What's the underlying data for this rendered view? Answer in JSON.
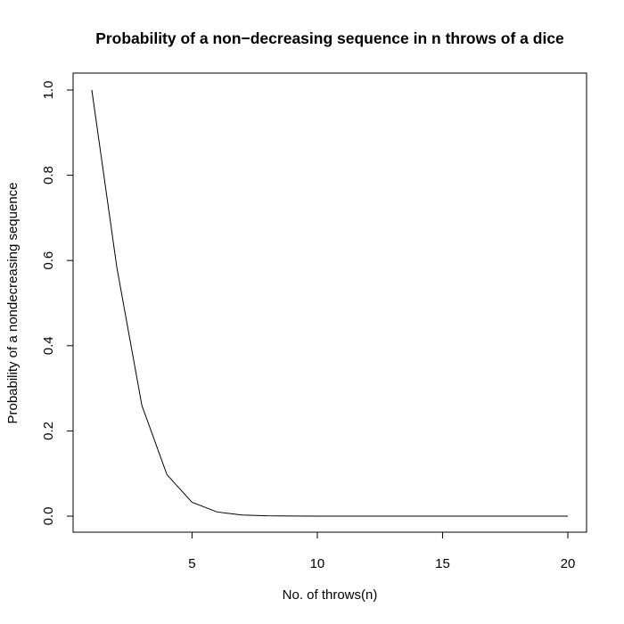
{
  "chart_data": {
    "type": "line",
    "title": "Probability of a non−decreasing sequence in n throws of a dice",
    "xlabel": "No. of throws(n)",
    "ylabel": "Probability of a nondecreasing sequence",
    "xlim": [
      1,
      20
    ],
    "ylim": [
      0,
      1
    ],
    "x_ticks": [
      5,
      10,
      15,
      20
    ],
    "x_tick_labels": [
      "5",
      "10",
      "15",
      "20"
    ],
    "y_ticks": [
      0,
      0.2,
      0.4,
      0.6,
      0.8,
      1
    ],
    "y_tick_labels": [
      "0.0",
      "0.2",
      "0.4",
      "0.6",
      "0.8",
      "1.0"
    ],
    "grid": false,
    "line_color": "#000000",
    "x": [
      1,
      2,
      3,
      4,
      5,
      6,
      7,
      8,
      9,
      10,
      11,
      12,
      13,
      14,
      15,
      16,
      17,
      18,
      19,
      20
    ],
    "y": [
      1.0,
      0.5833,
      0.2593,
      0.0972,
      0.0324,
      0.0098,
      0.0027,
      0.0007,
      0.0002,
      4e-05,
      1e-05,
      2e-06,
      4e-07,
      1e-07,
      2e-08,
      0.0,
      0.0,
      0.0,
      0.0,
      0.0
    ]
  }
}
